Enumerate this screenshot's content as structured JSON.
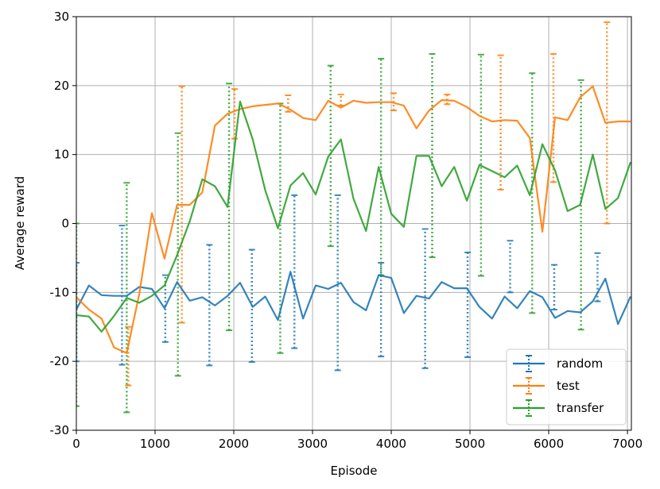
{
  "chart_data": {
    "type": "line",
    "xlabel": "Episode",
    "ylabel": "Average reward",
    "xlim": [
      0,
      7050
    ],
    "ylim": [
      -30,
      30
    ],
    "xticks": [
      0,
      1000,
      2000,
      3000,
      4000,
      5000,
      6000,
      7000
    ],
    "yticks": [
      -30,
      -20,
      -10,
      0,
      10,
      20,
      30
    ],
    "grid": true,
    "legend_position": "lower-right",
    "series": [
      {
        "name": "random",
        "color": "#1f77b4",
        "x": [
          0,
          160,
          320,
          480,
          640,
          800,
          960,
          1120,
          1280,
          1440,
          1600,
          1760,
          1920,
          2080,
          2240,
          2400,
          2560,
          2720,
          2880,
          3040,
          3200,
          3360,
          3520,
          3680,
          3840,
          4000,
          4160,
          4320,
          4480,
          4640,
          4800,
          4960,
          5120,
          5280,
          5440,
          5600,
          5760,
          5920,
          6080,
          6240,
          6400,
          6560,
          6720,
          6880,
          7040
        ],
        "y": [
          -12.5,
          -9.0,
          -10.4,
          -10.5,
          -10.5,
          -9.2,
          -9.5,
          -12.3,
          -8.5,
          -11.2,
          -10.7,
          -11.9,
          -10.5,
          -8.6,
          -12.1,
          -10.6,
          -14.0,
          -7.0,
          -13.8,
          -9.0,
          -9.5,
          -8.6,
          -11.4,
          -12.6,
          -7.5,
          -7.9,
          -13.0,
          -10.5,
          -10.9,
          -8.5,
          -9.4,
          -9.4,
          -12.1,
          -13.8,
          -10.6,
          -12.3,
          -9.8,
          -10.7,
          -13.7,
          -12.7,
          -12.9,
          -11.3,
          -8.0,
          -14.6,
          -10.6
        ],
        "error_bars": [
          {
            "x": 0,
            "low": -20,
            "high": -5.7
          },
          {
            "x": 580,
            "low": -20.5,
            "high": -0.3
          },
          {
            "x": 1130,
            "low": -17.2,
            "high": -7.5
          },
          {
            "x": 1690,
            "low": -20.6,
            "high": -3.1
          },
          {
            "x": 2230,
            "low": -20.1,
            "high": -3.8
          },
          {
            "x": 2770,
            "low": -18.1,
            "high": 4.1
          },
          {
            "x": 3320,
            "low": -21.3,
            "high": 4.1
          },
          {
            "x": 3870,
            "low": -19.3,
            "high": -5.7
          },
          {
            "x": 4430,
            "low": -21.0,
            "high": -0.8
          },
          {
            "x": 4970,
            "low": -19.4,
            "high": -4.2
          },
          {
            "x": 5510,
            "low": -10.0,
            "high": -2.5
          },
          {
            "x": 6070,
            "low": -12.5,
            "high": -6.0
          },
          {
            "x": 6620,
            "low": -11.3,
            "high": -4.3
          }
        ]
      },
      {
        "name": "test",
        "color": "#ff7f0e",
        "x": [
          0,
          160,
          320,
          480,
          640,
          800,
          960,
          1120,
          1280,
          1440,
          1600,
          1760,
          1920,
          2080,
          2240,
          2400,
          2560,
          2720,
          2880,
          3040,
          3200,
          3360,
          3520,
          3680,
          3840,
          4000,
          4160,
          4320,
          4480,
          4640,
          4800,
          4960,
          5120,
          5280,
          5440,
          5600,
          5760,
          5920,
          6080,
          6240,
          6400,
          6560,
          6720,
          6880,
          7040
        ],
        "y": [
          -10.7,
          -12.5,
          -13.8,
          -18.0,
          -18.8,
          -10.2,
          1.5,
          -5.1,
          2.7,
          2.7,
          4.5,
          14.2,
          15.9,
          16.6,
          17.0,
          17.2,
          17.4,
          16.5,
          15.3,
          15.0,
          17.8,
          16.8,
          17.8,
          17.5,
          17.6,
          17.6,
          17.1,
          13.8,
          16.4,
          17.9,
          17.8,
          16.9,
          15.6,
          14.8,
          15.0,
          14.9,
          12.4,
          -1.2,
          15.4,
          15.0,
          18.3,
          19.9,
          14.6,
          14.8,
          14.8
        ],
        "error_bars": [
          {
            "x": 660,
            "low": -23.5,
            "high": -15.0
          },
          {
            "x": 1340,
            "low": -14.4,
            "high": 19.9
          },
          {
            "x": 2010,
            "low": 12.3,
            "high": 19.5
          },
          {
            "x": 2690,
            "low": 16.2,
            "high": 18.6
          },
          {
            "x": 3360,
            "low": 17.1,
            "high": 18.7
          },
          {
            "x": 4030,
            "low": 16.4,
            "high": 18.9
          },
          {
            "x": 4710,
            "low": 17.3,
            "high": 18.7
          },
          {
            "x": 5390,
            "low": 4.9,
            "high": 24.4
          },
          {
            "x": 6060,
            "low": 6.0,
            "high": 24.6
          },
          {
            "x": 6740,
            "low": 0.0,
            "high": 29.2
          }
        ]
      },
      {
        "name": "transfer",
        "color": "#2ca02c",
        "x": [
          0,
          160,
          320,
          480,
          640,
          800,
          960,
          1120,
          1280,
          1440,
          1600,
          1760,
          1920,
          2080,
          2240,
          2400,
          2560,
          2720,
          2880,
          3040,
          3200,
          3360,
          3520,
          3680,
          3840,
          4000,
          4160,
          4320,
          4480,
          4640,
          4800,
          4960,
          5120,
          5280,
          5440,
          5600,
          5760,
          5920,
          6080,
          6240,
          6400,
          6560,
          6720,
          6880,
          7040
        ],
        "y": [
          -13.3,
          -13.5,
          -15.7,
          -13.4,
          -10.8,
          -11.5,
          -10.5,
          -9.0,
          -4.6,
          0.3,
          6.4,
          5.4,
          2.4,
          17.7,
          12.2,
          4.8,
          -0.7,
          5.5,
          7.3,
          4.2,
          9.7,
          12.2,
          3.6,
          -1.1,
          8.2,
          1.4,
          -0.5,
          9.8,
          9.8,
          5.4,
          8.2,
          3.3,
          8.5,
          7.6,
          6.7,
          8.4,
          4.1,
          11.5,
          7.7,
          1.8,
          2.7,
          10.0,
          2.1,
          3.7,
          8.9
        ],
        "error_bars": [
          {
            "x": 0,
            "low": -26.5,
            "high": 0.0
          },
          {
            "x": 640,
            "low": -27.4,
            "high": 5.9
          },
          {
            "x": 1290,
            "low": -22.1,
            "high": 13.1
          },
          {
            "x": 1940,
            "low": -15.5,
            "high": 20.3
          },
          {
            "x": 2590,
            "low": -18.8,
            "high": 17.4
          },
          {
            "x": 3230,
            "low": -3.3,
            "high": 22.9
          },
          {
            "x": 3870,
            "low": -7.5,
            "high": 23.9
          },
          {
            "x": 4520,
            "low": -4.9,
            "high": 24.6
          },
          {
            "x": 5140,
            "low": -7.6,
            "high": 24.5
          },
          {
            "x": 5790,
            "low": -13.0,
            "high": 21.8
          },
          {
            "x": 6410,
            "low": -15.4,
            "high": 20.8
          }
        ]
      }
    ]
  }
}
